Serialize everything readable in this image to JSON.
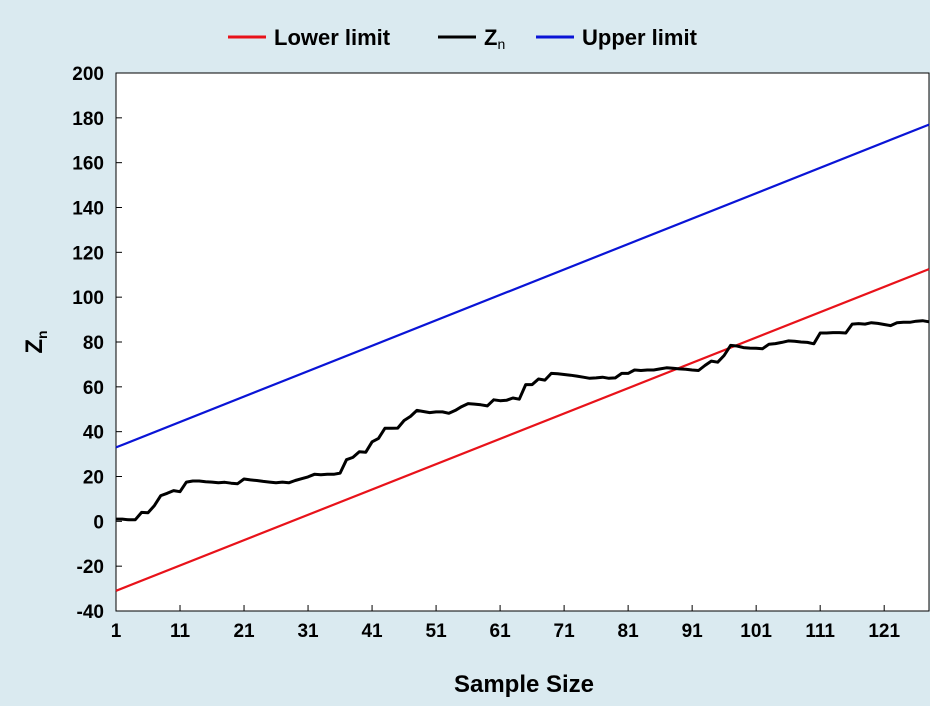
{
  "chart_data": {
    "type": "line",
    "xlabel": "Sample Size",
    "ylabel": {
      "main": "Z",
      "sub": "n"
    },
    "xlim": [
      1,
      128
    ],
    "ylim": [
      -40,
      200
    ],
    "xticks": [
      1,
      11,
      21,
      31,
      41,
      51,
      61,
      71,
      81,
      91,
      101,
      111,
      121
    ],
    "yticks": [
      -40,
      -20,
      0,
      20,
      40,
      60,
      80,
      100,
      120,
      140,
      160,
      180,
      200
    ],
    "grid": false,
    "legend_position": "top",
    "legend": [
      {
        "label": "Lower limit",
        "sub": "",
        "color": "#e8121a"
      },
      {
        "label": "Z",
        "sub": "n",
        "color": "#000000"
      },
      {
        "label": "Upper limit",
        "sub": "",
        "color": "#0a14d6"
      }
    ],
    "series": [
      {
        "name": "Lower limit",
        "color": "#e8121a",
        "x": [
          1,
          128
        ],
        "y": [
          -31,
          112.5
        ]
      },
      {
        "name": "Upper limit",
        "color": "#0a14d6",
        "x": [
          1,
          128
        ],
        "y": [
          33,
          177
        ]
      },
      {
        "name": "Zn",
        "color": "#000000",
        "x": [
          1,
          2,
          3,
          4,
          5,
          6,
          7,
          8,
          9,
          10,
          11,
          12,
          13,
          14,
          15,
          16,
          17,
          18,
          19,
          20,
          21,
          22,
          23,
          24,
          25,
          26,
          27,
          28,
          29,
          30,
          31,
          32,
          33,
          34,
          35,
          36,
          37,
          38,
          39,
          40,
          41,
          42,
          43,
          44,
          45,
          46,
          47,
          48,
          49,
          50,
          51,
          52,
          53,
          54,
          55,
          56,
          57,
          58,
          59,
          60,
          61,
          62,
          63,
          64,
          65,
          66,
          67,
          68,
          69,
          70,
          71,
          72,
          73,
          74,
          75,
          76,
          77,
          78,
          79,
          80,
          81,
          82,
          83,
          84,
          85,
          86,
          87,
          88,
          89,
          90,
          91,
          92,
          93,
          94,
          95,
          96,
          97,
          98,
          99,
          100,
          101,
          102,
          103,
          104,
          105,
          106,
          107,
          108,
          109,
          110,
          111,
          112,
          113,
          114,
          115,
          116,
          117,
          118,
          119,
          120,
          121,
          122,
          123,
          124,
          125,
          126,
          127,
          128
        ],
        "y": [
          1,
          1,
          0.7,
          0.7,
          4,
          3.8,
          7,
          11.5,
          12.5,
          13.7,
          13.2,
          17.5,
          18,
          18,
          17.7,
          17.5,
          17.2,
          17.4,
          17,
          16.8,
          18.9,
          18.5,
          18.2,
          17.8,
          17.5,
          17.2,
          17.5,
          17.2,
          18.2,
          19,
          19.8,
          21,
          20.8,
          21,
          21,
          21.5,
          27.5,
          28.5,
          31,
          30.8,
          35.5,
          37,
          41.5,
          41.5,
          41.6,
          45,
          46.8,
          49.5,
          49,
          48.5,
          48.8,
          48.8,
          48.2,
          49.5,
          51.2,
          52.5,
          52.3,
          52,
          51.5,
          54.2,
          53.8,
          54,
          55,
          54.5,
          61,
          61,
          63.5,
          63,
          66,
          65.8,
          65.5,
          65.2,
          64.8,
          64.3,
          63.8,
          64,
          64.3,
          63.8,
          64,
          66,
          66,
          67.5,
          67.3,
          67.5,
          67.5,
          68,
          68.5,
          68.3,
          68,
          67.8,
          67.5,
          67.3,
          69.5,
          71.5,
          71,
          74,
          78.5,
          78.2,
          77.5,
          77.3,
          77.2,
          77,
          79,
          79.3,
          79.8,
          80.5,
          80.3,
          80,
          79.8,
          79.2,
          84,
          84,
          84.2,
          84.2,
          84,
          88,
          88.2,
          88,
          88.6,
          88.3,
          87.8,
          87.3,
          88.6,
          88.8,
          88.8,
          89.3,
          89.5,
          89
        ]
      }
    ]
  }
}
